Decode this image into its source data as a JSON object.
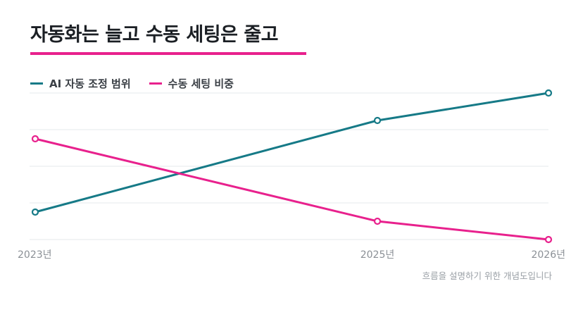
{
  "title": "자동화는 늘고 수동 세팅은 줄고",
  "footnote": "흐름을 설명하기 위한 개념도입니다",
  "colors": {
    "accent": "#e8218d",
    "series_teal": "#167a87",
    "series_pink": "#e8218d",
    "grid": "#e6e8eb"
  },
  "chart_data": {
    "type": "line",
    "categories": [
      "2023년",
      "2025년",
      "2026년"
    ],
    "x": [
      2023,
      2025,
      2026
    ],
    "series": [
      {
        "name": "AI 자동 조정 범위",
        "color": "#167a87",
        "values": [
          15,
          65,
          80
        ]
      },
      {
        "name": "수동 세팅 비중",
        "color": "#e8218d",
        "values": [
          55,
          10,
          0
        ]
      }
    ],
    "xlabel": "",
    "ylabel": "",
    "ylim": [
      0,
      80
    ],
    "y_tick_labels_shown": false,
    "grid": true,
    "legend_position": "top-left"
  }
}
